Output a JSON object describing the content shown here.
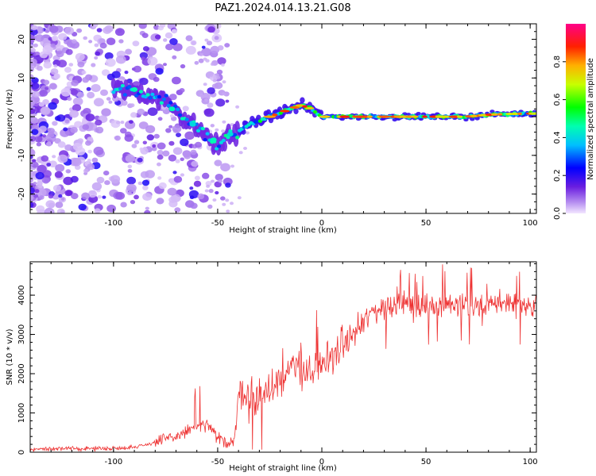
{
  "title": "PAZ1.2024.014.13.21.G08",
  "chart_data": [
    {
      "type": "heatmap",
      "xlabel": "Height of straight line (km)",
      "ylabel": "Frequency (Hz)",
      "xlim": [
        -140,
        103
      ],
      "ylim": [
        -25,
        24
      ],
      "xticks": [
        -100,
        -50,
        0,
        50,
        100
      ],
      "yticks": [
        -20,
        -10,
        0,
        10,
        20
      ],
      "colorbar": {
        "label": "Normalized spectral amplitude",
        "range": [
          0,
          1
        ],
        "ticks": [
          "0.0",
          "0.2",
          "0.4",
          "0.6",
          "0.8"
        ]
      },
      "ridge": {
        "x": [
          -95,
          -85,
          -75,
          -70,
          -65,
          -60,
          -55,
          -50,
          -45,
          -40,
          -35,
          -30,
          -25,
          -20,
          -15,
          -10,
          -5,
          0,
          10,
          20,
          30,
          40,
          50,
          60,
          70,
          80,
          90,
          100
        ],
        "y": [
          7,
          6,
          4,
          2,
          -1,
          -3,
          -5,
          -8,
          -5,
          -4,
          -2,
          -1,
          0,
          1,
          2,
          3,
          2,
          0,
          0,
          0,
          0,
          0,
          0,
          0,
          0,
          0.5,
          0.7,
          0.8
        ]
      }
    },
    {
      "type": "line",
      "xlabel": "Height of straight line (km)",
      "ylabel": "SNR (10 * v/v)",
      "xlim": [
        -140,
        103
      ],
      "ylim": [
        0,
        4850
      ],
      "xticks": [
        -100,
        -50,
        0,
        50,
        100
      ],
      "yticks": [
        0,
        1000,
        2000,
        3000,
        4000
      ],
      "color": "#ee3333",
      "series": [
        {
          "x": [
            -140,
            -120,
            -100,
            -90,
            -80,
            -70,
            -60,
            -55,
            -50,
            -45,
            -42,
            -40,
            -38,
            -35,
            -30,
            -25,
            -20,
            -15,
            -10,
            -5,
            0,
            5,
            10,
            15,
            20,
            25,
            30,
            35,
            40,
            50,
            60,
            70,
            80,
            90,
            100,
            103
          ],
          "values": [
            80,
            90,
            100,
            130,
            250,
            400,
            650,
            700,
            350,
            250,
            300,
            1300,
            1500,
            1400,
            1400,
            1600,
            1900,
            2100,
            2200,
            2000,
            2200,
            2500,
            2700,
            3000,
            3300,
            3600,
            3700,
            3800,
            3800,
            3700,
            3800,
            3700,
            3750,
            3800,
            3750,
            3800
          ]
        }
      ]
    }
  ]
}
